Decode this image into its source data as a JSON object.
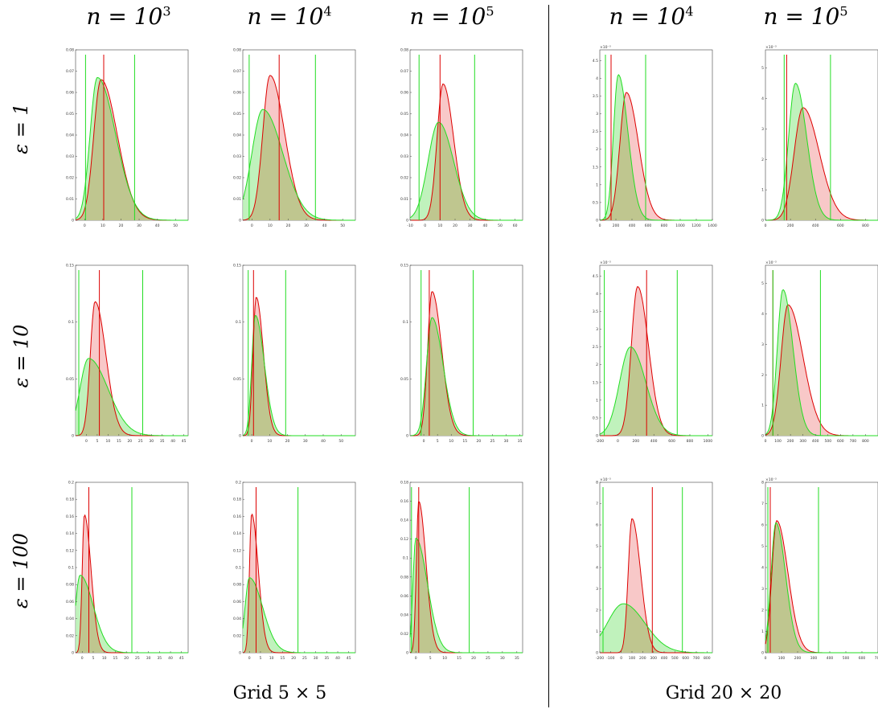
{
  "column_headers": [
    {
      "base": "n = 10",
      "exp": "3"
    },
    {
      "base": "n = 10",
      "exp": "4"
    },
    {
      "base": "n = 10",
      "exp": "5"
    },
    {
      "base": "n = 10",
      "exp": "4"
    },
    {
      "base": "n = 10",
      "exp": "5"
    }
  ],
  "row_headers": [
    "ε = 1",
    "ε = 10",
    "ε = 100"
  ],
  "group_labels": [
    "Grid 5 × 5",
    "Grid 20 × 20"
  ],
  "colors": {
    "red_series": "#dd0000",
    "red_fill": "#f6b5b5",
    "green_series": "#22dd22",
    "green_fill": "#b5f0b0",
    "overlap_fill": "#bfc68f"
  },
  "chart_data": [
    {
      "type": "area",
      "row": "ε = 1",
      "col": "n = 10^3",
      "xlim": [
        -5,
        57
      ],
      "ylim": [
        0,
        0.08
      ],
      "xticks": [
        "0",
        "10",
        "20",
        "30",
        "40",
        "50"
      ],
      "yticks": [
        "0",
        "0.01",
        "0.02",
        "0.03",
        "0.04",
        "0.05",
        "0.06",
        "0.07",
        "0.08"
      ],
      "series": [
        {
          "color": "red",
          "mode": 9,
          "peak": 0.066,
          "sd_left": 4,
          "sd_right": 9
        },
        {
          "color": "green",
          "mode": 7,
          "peak": 0.067,
          "sd_left": 4,
          "sd_right": 10
        }
      ],
      "vlines": [
        {
          "color": "red",
          "x": 10.5
        },
        {
          "color": "green",
          "x": 0.5
        },
        {
          "color": "green",
          "x": 27.5
        }
      ]
    },
    {
      "type": "area",
      "row": "ε = 1",
      "col": "n = 10^4",
      "xlim": [
        -5,
        57
      ],
      "ylim": [
        0,
        0.08
      ],
      "xticks": [
        "0",
        "10",
        "20",
        "30",
        "40",
        "50"
      ],
      "yticks": [
        "0",
        "0.01",
        "0.02",
        "0.03",
        "0.04",
        "0.05",
        "0.06",
        "0.07",
        "0.08"
      ],
      "series": [
        {
          "color": "red",
          "mode": 10,
          "peak": 0.068,
          "sd_left": 4,
          "sd_right": 8
        },
        {
          "color": "green",
          "mode": 6,
          "peak": 0.052,
          "sd_left": 6,
          "sd_right": 11
        }
      ],
      "vlines": [
        {
          "color": "red",
          "x": 15
        },
        {
          "color": "green",
          "x": -1.5
        },
        {
          "color": "green",
          "x": 35
        }
      ]
    },
    {
      "type": "area",
      "row": "ε = 1",
      "col": "n = 10^5",
      "xlim": [
        -10,
        65
      ],
      "ylim": [
        0,
        0.08
      ],
      "xticks": [
        "-10",
        "0",
        "10",
        "20",
        "30",
        "40",
        "50",
        "60"
      ],
      "yticks": [
        "0",
        "0.01",
        "0.02",
        "0.03",
        "0.04",
        "0.05",
        "0.06",
        "0.07",
        "0.08"
      ],
      "series": [
        {
          "color": "red",
          "mode": 12,
          "peak": 0.064,
          "sd_left": 4,
          "sd_right": 7
        },
        {
          "color": "green",
          "mode": 9,
          "peak": 0.046,
          "sd_left": 7,
          "sd_right": 10
        }
      ],
      "vlines": [
        {
          "color": "red",
          "x": 10
        },
        {
          "color": "green",
          "x": -4
        },
        {
          "color": "green",
          "x": 33
        }
      ]
    },
    {
      "type": "area",
      "row": "ε = 1",
      "col": "n = 10^4",
      "xlim": [
        0,
        1400
      ],
      "ylim": [
        0,
        4.8
      ],
      "yexp": "×10⁻³",
      "xticks": [
        "0",
        "200",
        "400",
        "600",
        "800",
        "1000",
        "1200",
        "1400"
      ],
      "yticks": [
        "0",
        "0.5",
        "1",
        "1.5",
        "2",
        "2.5",
        "3",
        "3.5",
        "4",
        "4.5"
      ],
      "series": [
        {
          "color": "red",
          "mode": 330,
          "peak": 3.6,
          "sd_left": 80,
          "sd_right": 150
        },
        {
          "color": "green",
          "mode": 230,
          "peak": 4.1,
          "sd_left": 60,
          "sd_right": 120
        }
      ],
      "vlines": [
        {
          "color": "red",
          "x": 140
        },
        {
          "color": "green",
          "x": 70
        },
        {
          "color": "green",
          "x": 570
        }
      ]
    },
    {
      "type": "area",
      "row": "ε = 1",
      "col": "n = 10^5",
      "xlim": [
        0,
        900
      ],
      "ylim": [
        0,
        5.6
      ],
      "yexp": "×10⁻³",
      "xticks": [
        "0",
        "200",
        "400",
        "600",
        "800"
      ],
      "yticks": [
        "0",
        "1",
        "2",
        "3",
        "4",
        "5"
      ],
      "series": [
        {
          "color": "red",
          "mode": 300,
          "peak": 3.7,
          "sd_left": 70,
          "sd_right": 130
        },
        {
          "color": "green",
          "mode": 240,
          "peak": 4.5,
          "sd_left": 55,
          "sd_right": 90
        }
      ],
      "vlines": [
        {
          "color": "red",
          "x": 170
        },
        {
          "color": "green",
          "x": 150
        },
        {
          "color": "green",
          "x": 520
        }
      ]
    },
    {
      "type": "area",
      "row": "ε = 10",
      "col": "n = 10^3",
      "xlim": [
        -5,
        47
      ],
      "ylim": [
        0,
        0.15
      ],
      "xticks": [
        "0",
        "5",
        "10",
        "15",
        "20",
        "25",
        "30",
        "35",
        "40",
        "45"
      ],
      "yticks": [
        "0",
        "0.05",
        "0.1",
        "0.15"
      ],
      "series": [
        {
          "color": "red",
          "mode": 4,
          "peak": 0.118,
          "sd_left": 2.2,
          "sd_right": 5
        },
        {
          "color": "green",
          "mode": 1,
          "peak": 0.068,
          "sd_left": 4,
          "sd_right": 9
        }
      ],
      "vlines": [
        {
          "color": "red",
          "x": 6
        },
        {
          "color": "green",
          "x": -3.5
        },
        {
          "color": "green",
          "x": 26
        }
      ]
    },
    {
      "type": "area",
      "row": "ε = 10",
      "col": "n = 10^4",
      "xlim": [
        -5,
        58
      ],
      "ylim": [
        0,
        0.15
      ],
      "xticks": [
        "0",
        "10",
        "20",
        "30",
        "40",
        "50"
      ],
      "yticks": [
        "0",
        "0.05",
        "0.1",
        "0.15"
      ],
      "series": [
        {
          "color": "red",
          "mode": 2.5,
          "peak": 0.122,
          "sd_left": 1.8,
          "sd_right": 4
        },
        {
          "color": "green",
          "mode": 2,
          "peak": 0.106,
          "sd_left": 2,
          "sd_right": 5
        }
      ],
      "vlines": [
        {
          "color": "red",
          "x": 1
        },
        {
          "color": "green",
          "x": -2
        },
        {
          "color": "green",
          "x": 19
        }
      ]
    },
    {
      "type": "area",
      "row": "ε = 10",
      "col": "n = 10^5",
      "xlim": [
        -5,
        36
      ],
      "ylim": [
        0,
        0.15
      ],
      "xticks": [
        "0",
        "5",
        "10",
        "15",
        "20",
        "25",
        "30",
        "35"
      ],
      "yticks": [
        "0",
        "0.05",
        "0.1",
        "0.15"
      ],
      "series": [
        {
          "color": "red",
          "mode": 3,
          "peak": 0.127,
          "sd_left": 1.6,
          "sd_right": 3.5
        },
        {
          "color": "green",
          "mode": 3,
          "peak": 0.104,
          "sd_left": 2,
          "sd_right": 4
        }
      ],
      "vlines": [
        {
          "color": "red",
          "x": 2
        },
        {
          "color": "green",
          "x": -1
        },
        {
          "color": "green",
          "x": 18
        }
      ]
    },
    {
      "type": "area",
      "row": "ε = 10",
      "col": "n = 10^4",
      "xlim": [
        -200,
        1050
      ],
      "ylim": [
        0,
        4.8
      ],
      "yexp": "×10⁻³",
      "xticks": [
        "-200",
        "0",
        "200",
        "400",
        "600",
        "800",
        "1000"
      ],
      "yticks": [
        "0",
        "0.5",
        "1",
        "1.5",
        "2",
        "2.5",
        "3",
        "3.5",
        "4",
        "4.5"
      ],
      "series": [
        {
          "color": "red",
          "mode": 220,
          "peak": 4.2,
          "sd_left": 70,
          "sd_right": 120
        },
        {
          "color": "green",
          "mode": 140,
          "peak": 2.5,
          "sd_left": 120,
          "sd_right": 170
        }
      ],
      "vlines": [
        {
          "color": "red",
          "x": 320
        },
        {
          "color": "green",
          "x": -150
        },
        {
          "color": "green",
          "x": 660
        }
      ]
    },
    {
      "type": "area",
      "row": "ε = 10",
      "col": "n = 10^5",
      "xlim": [
        0,
        900
      ],
      "ylim": [
        0,
        5.6
      ],
      "yexp": "×10⁻³",
      "xticks": [
        "0",
        "100",
        "200",
        "300",
        "400",
        "500",
        "600",
        "700",
        "800"
      ],
      "yticks": [
        "0",
        "1",
        "2",
        "3",
        "4",
        "5"
      ],
      "series": [
        {
          "color": "red",
          "mode": 180,
          "peak": 4.3,
          "sd_left": 55,
          "sd_right": 120
        },
        {
          "color": "green",
          "mode": 140,
          "peak": 4.8,
          "sd_left": 45,
          "sd_right": 80
        }
      ],
      "vlines": [
        {
          "color": "red",
          "x": 60
        },
        {
          "color": "green",
          "x": 60
        },
        {
          "color": "green",
          "x": 440
        }
      ]
    },
    {
      "type": "area",
      "row": "ε = 100",
      "col": "n = 10^3",
      "xlim": [
        -3,
        48
      ],
      "ylim": [
        0,
        0.2
      ],
      "xticks": [
        "0",
        "5",
        "10",
        "15",
        "20",
        "25",
        "30",
        "35",
        "40",
        "45"
      ],
      "yticks": [
        "0",
        "0.02",
        "0.04",
        "0.06",
        "0.08",
        "0.1",
        "0.12",
        "0.14",
        "0.16",
        "0.18",
        "0.2"
      ],
      "series": [
        {
          "color": "red",
          "mode": 1,
          "peak": 0.162,
          "sd_left": 1,
          "sd_right": 3
        },
        {
          "color": "green",
          "mode": -1,
          "peak": 0.091,
          "sd_left": 2,
          "sd_right": 6
        }
      ],
      "vlines": [
        {
          "color": "red",
          "x": 3
        },
        {
          "color": "green",
          "x": 22.5
        }
      ]
    },
    {
      "type": "area",
      "row": "ε = 100",
      "col": "n = 10^4",
      "xlim": [
        -3,
        48
      ],
      "ylim": [
        0,
        0.2
      ],
      "xticks": [
        "0",
        "5",
        "10",
        "15",
        "20",
        "25",
        "30",
        "35",
        "40",
        "45"
      ],
      "yticks": [
        "0",
        "0.02",
        "0.04",
        "0.06",
        "0.08",
        "0.1",
        "0.12",
        "0.14",
        "0.16",
        "0.18",
        "0.2"
      ],
      "series": [
        {
          "color": "red",
          "mode": 1,
          "peak": 0.163,
          "sd_left": 1,
          "sd_right": 3
        },
        {
          "color": "green",
          "mode": 0,
          "peak": 0.088,
          "sd_left": 2,
          "sd_right": 6
        }
      ],
      "vlines": [
        {
          "color": "red",
          "x": 3
        },
        {
          "color": "green",
          "x": 22
        }
      ]
    },
    {
      "type": "area",
      "row": "ε = 100",
      "col": "n = 10^5",
      "xlim": [
        -2,
        37
      ],
      "ylim": [
        0,
        0.18
      ],
      "xticks": [
        "0",
        "5",
        "10",
        "15",
        "20",
        "25",
        "30",
        "35"
      ],
      "yticks": [
        "0",
        "0.02",
        "0.04",
        "0.06",
        "0.08",
        "0.1",
        "0.12",
        "0.14",
        "0.16",
        "0.18"
      ],
      "series": [
        {
          "color": "red",
          "mode": 1,
          "peak": 0.16,
          "sd_left": 0.8,
          "sd_right": 2.5
        },
        {
          "color": "green",
          "mode": 0,
          "peak": 0.121,
          "sd_left": 1,
          "sd_right": 4
        }
      ],
      "vlines": [
        {
          "color": "red",
          "x": 1
        },
        {
          "color": "green",
          "x": -1.5
        },
        {
          "color": "green",
          "x": 18.5
        }
      ]
    },
    {
      "type": "area",
      "row": "ε = 100",
      "col": "n = 10^4",
      "xlim": [
        -200,
        850
      ],
      "ylim": [
        0,
        8
      ],
      "yexp": "×10⁻³",
      "xticks": [
        "-200",
        "-100",
        "0",
        "100",
        "200",
        "300",
        "400",
        "500",
        "600",
        "700",
        "800"
      ],
      "yticks": [
        "0",
        "1",
        "2",
        "3",
        "4",
        "5",
        "6",
        "7",
        "8"
      ],
      "series": [
        {
          "color": "red",
          "mode": 100,
          "peak": 6.3,
          "sd_left": 35,
          "sd_right": 80
        },
        {
          "color": "green",
          "mode": 20,
          "peak": 2.3,
          "sd_left": 150,
          "sd_right": 200
        }
      ],
      "vlines": [
        {
          "color": "red",
          "x": 290
        },
        {
          "color": "green",
          "x": -170
        },
        {
          "color": "green",
          "x": 570
        }
      ]
    },
    {
      "type": "area",
      "row": "ε = 100",
      "col": "n = 10^5",
      "xlim": [
        0,
        700
      ],
      "ylim": [
        0,
        8
      ],
      "yexp": "×10⁻³",
      "xticks": [
        "0",
        "100",
        "200",
        "300",
        "400",
        "500",
        "600",
        "700"
      ],
      "yticks": [
        "0",
        "1",
        "2",
        "3",
        "4",
        "5",
        "6",
        "7",
        "8"
      ],
      "series": [
        {
          "color": "red",
          "mode": 70,
          "peak": 6.2,
          "sd_left": 30,
          "sd_right": 70
        },
        {
          "color": "green",
          "mode": 65,
          "peak": 6.1,
          "sd_left": 30,
          "sd_right": 60
        }
      ],
      "vlines": [
        {
          "color": "red",
          "x": 30
        },
        {
          "color": "green",
          "x": 15
        },
        {
          "color": "green",
          "x": 330
        }
      ]
    }
  ]
}
